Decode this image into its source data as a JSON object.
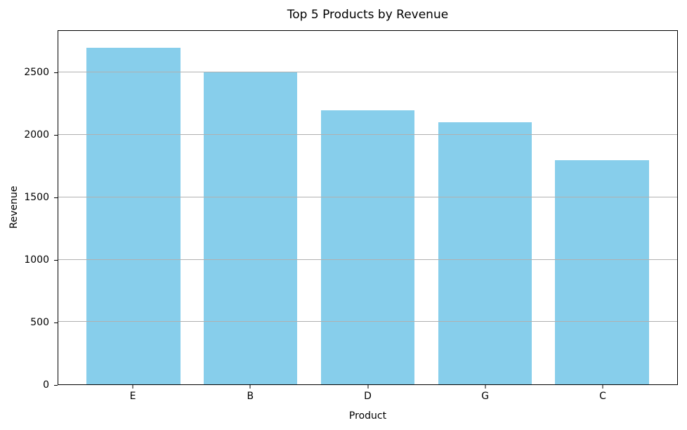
{
  "chart_data": {
    "type": "bar",
    "title": "Top 5 Products by Revenue",
    "xlabel": "Product",
    "ylabel": "Revenue",
    "categories": [
      "E",
      "B",
      "D",
      "G",
      "C"
    ],
    "values": [
      2700,
      2500,
      2200,
      2100,
      1800
    ],
    "yticks": [
      0,
      500,
      1000,
      1500,
      2000,
      2500
    ],
    "ylim": [
      0,
      2835
    ],
    "bar_color": "#87CEEB",
    "grid_color": "#b0b0b0",
    "spine_color": "#000000",
    "text_color": "#000000",
    "background_color": "#ffffff",
    "grid": "y-only, drawn over bars",
    "legend": "none",
    "bar_width_fraction": 0.8
  }
}
